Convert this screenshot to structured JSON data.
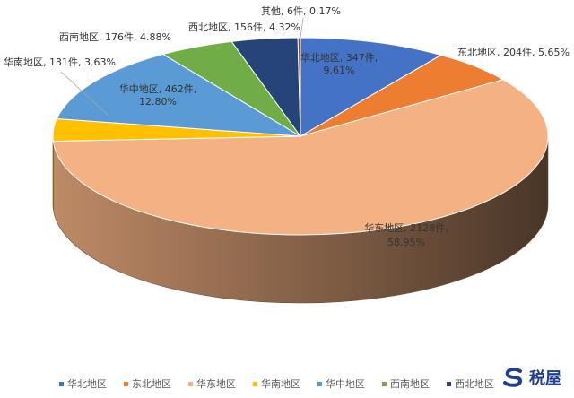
{
  "chart_data": {
    "type": "pie",
    "style": "3d",
    "legend_position": "bottom",
    "label_color": "#333333",
    "slices": [
      {
        "name": "华北地区",
        "count": 347,
        "percent": 9.61,
        "label_line1": "华北地区, 347件,",
        "label_line2": "9.61%",
        "color": "#4472C4"
      },
      {
        "name": "东北地区",
        "count": 204,
        "percent": 5.65,
        "label_line1": "东北地区, 204件, 5.65%",
        "label_line2": "",
        "color": "#ED7D31"
      },
      {
        "name": "华东地区",
        "count": 2128,
        "percent": 58.95,
        "label_line1": "华东地区, 2128件,",
        "label_line2": "58.95%",
        "color": "#F4B183"
      },
      {
        "name": "华南地区",
        "count": 131,
        "percent": 3.63,
        "label_line1": "华南地区, 131件, 3.63%",
        "label_line2": "",
        "color": "#FFC000"
      },
      {
        "name": "华中地区",
        "count": 462,
        "percent": 12.8,
        "label_line1": "华中地区, 462件,",
        "label_line2": "12.80%",
        "color": "#5B9BD5"
      },
      {
        "name": "西南地区",
        "count": 176,
        "percent": 4.88,
        "label_line1": "西南地区, 176件, 4.88%",
        "label_line2": "",
        "color": "#70AD47"
      },
      {
        "name": "西北地区",
        "count": 156,
        "percent": 4.32,
        "label_line1": "西北地区, 156件, 4.32%",
        "label_line2": "",
        "color": "#264478"
      },
      {
        "name": "其他",
        "count": 6,
        "percent": 0.17,
        "label_line1": "其他, 6件, 0.17%",
        "label_line2": "",
        "color": "#9E480E"
      }
    ],
    "legend": [
      "华北地区",
      "东北地区",
      "华东地区",
      "华南地区",
      "华中地区",
      "西南地区",
      "西北地区"
    ]
  },
  "watermark": {
    "text": "税屋",
    "icon": "shuiwu-logo-icon",
    "color": "#1F3F8F"
  }
}
